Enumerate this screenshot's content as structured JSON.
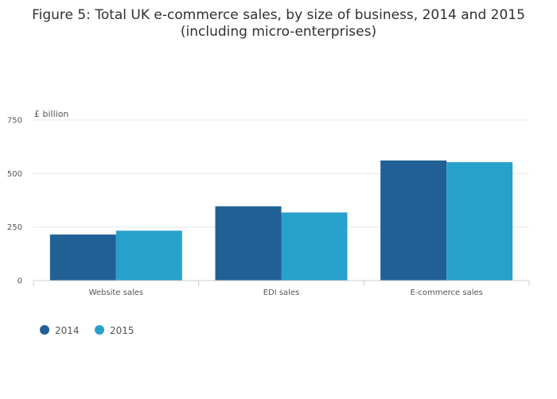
{
  "chart_data": {
    "type": "bar",
    "title_lines": [
      "Figure 5: Total UK e-commerce sales, by size of business, 2014 and 2015",
      "(including micro-enterprises)"
    ],
    "unit_label": "£ billion",
    "categories": [
      "Website sales",
      "EDI sales",
      "E-commerce sales"
    ],
    "series": [
      {
        "name": "2014",
        "color": "#206095",
        "values": [
          215,
          347,
          561
        ]
      },
      {
        "name": "2015",
        "color": "#27a0cc",
        "values": [
          233,
          318,
          553
        ]
      }
    ],
    "ylim": [
      0,
      750
    ],
    "yticks": [
      0,
      250,
      500,
      750
    ],
    "ytick_labels": [
      "0",
      "250",
      "500",
      "750"
    ],
    "grid": true,
    "legend_position": "bottom-left"
  }
}
